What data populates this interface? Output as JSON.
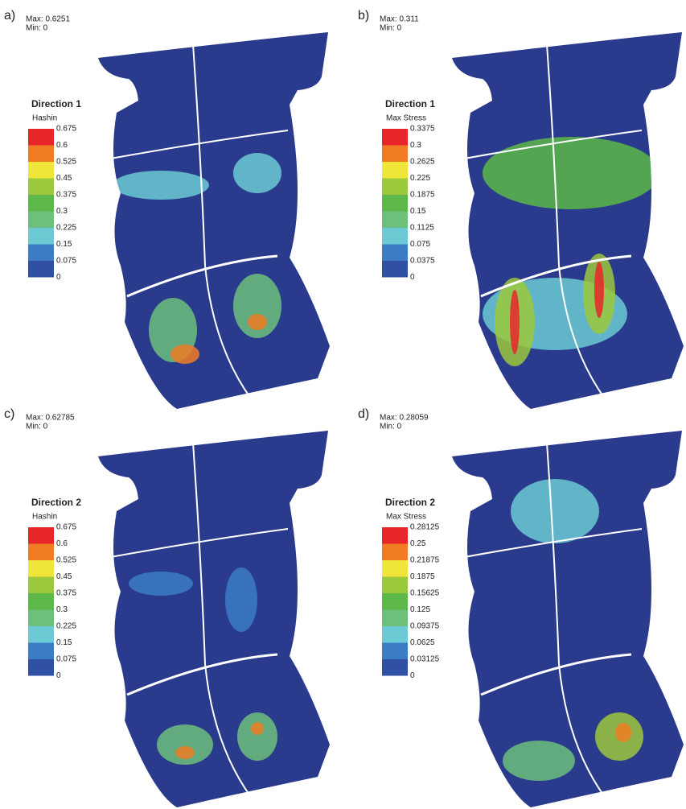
{
  "legend_colors": [
    "#e8262a",
    "#f07c24",
    "#f0e63a",
    "#9cc83c",
    "#5cb848",
    "#6cc07c",
    "#6ccad4",
    "#3c7cc4",
    "#3050a4"
  ],
  "panels": [
    {
      "label": "a)",
      "max": "Max: 0.6251",
      "min": "Min: 0",
      "title": "Direction 1",
      "metric": "Hashin",
      "scale": [
        "0.675",
        "0.6",
        "0.525",
        "0.45",
        "0.375",
        "0.3",
        "0.225",
        "0.15",
        "0.075",
        "0"
      ]
    },
    {
      "label": "b)",
      "max": "Max: 0.311",
      "min": "Min: 0",
      "title": "Direction 1",
      "metric": "Max Stress",
      "scale": [
        "0.3375",
        "0.3",
        "0.2625",
        "0.225",
        "0.1875",
        "0.15",
        "0.1125",
        "0.075",
        "0.0375",
        "0"
      ]
    },
    {
      "label": "c)",
      "max": "Max: 0.62785",
      "min": "Min: 0",
      "title": "Direction 2",
      "metric": "Hashin",
      "scale": [
        "0.675",
        "0.6",
        "0.525",
        "0.45",
        "0.375",
        "0.3",
        "0.225",
        "0.15",
        "0.075",
        "0"
      ]
    },
    {
      "label": "d)",
      "max": "Max: 0.28059",
      "min": "Min: 0",
      "title": "Direction 2",
      "metric": "Max Stress",
      "scale": [
        "0.28125",
        "0.25",
        "0.21875",
        "0.1875",
        "0.15625",
        "0.125",
        "0.09375",
        "0.0625",
        "0.03125",
        "0"
      ]
    }
  ]
}
